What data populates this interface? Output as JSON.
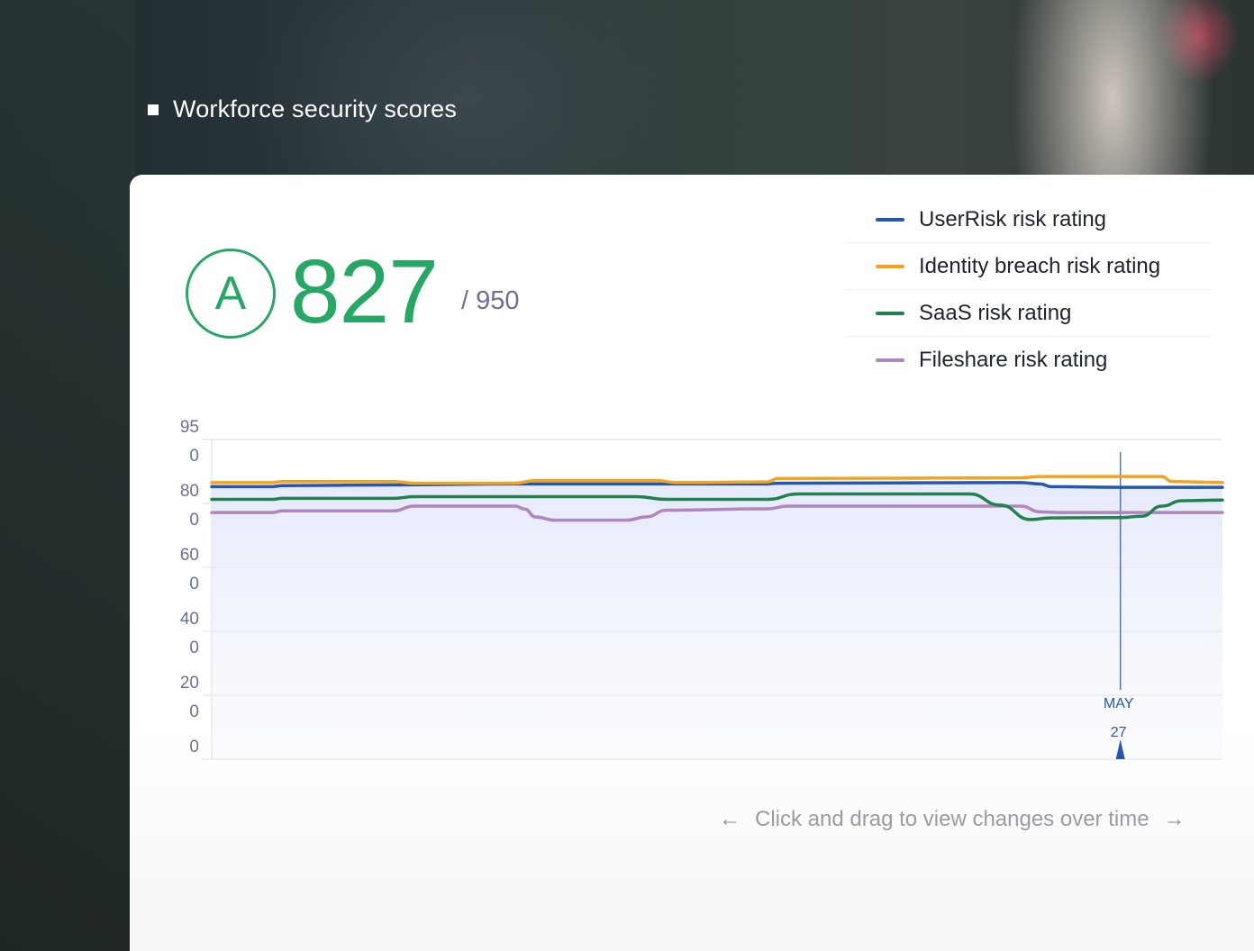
{
  "header": {
    "title": "Workforce security scores"
  },
  "score": {
    "grade": "A",
    "value": "827",
    "max": "/ 950"
  },
  "legend": [
    {
      "label": "UserRisk risk rating",
      "color": "#2356b5"
    },
    {
      "label": "Identity breach risk rating",
      "color": "#f5a31a"
    },
    {
      "label": "SaaS risk rating",
      "color": "#22824d"
    },
    {
      "label": "Fileshare risk rating",
      "color": "#b185c0"
    }
  ],
  "chart_data": {
    "type": "line",
    "y_tick_labels": [
      {
        "main": "95",
        "sub": "0"
      },
      {
        "main": "80",
        "sub": "0"
      },
      {
        "main": "60",
        "sub": "0"
      },
      {
        "main": "40",
        "sub": "0"
      },
      {
        "main": "20",
        "sub": "0"
      },
      {
        "main": "0",
        "sub": ""
      }
    ],
    "ylim": [
      0,
      950
    ],
    "marker": {
      "month": "MAY",
      "day": "27",
      "x_fraction": 0.899
    },
    "x_range": [
      0,
      1
    ],
    "series": [
      {
        "name": "UserRisk risk rating",
        "color": "#2356b5",
        "points": [
          [
            0,
            810
          ],
          [
            0.06,
            810
          ],
          [
            0.07,
            813
          ],
          [
            0.18,
            815
          ],
          [
            0.3,
            818
          ],
          [
            0.55,
            818
          ],
          [
            0.55,
            818
          ],
          [
            0.56,
            820
          ],
          [
            0.78,
            822
          ],
          [
            0.8,
            822
          ],
          [
            0.82,
            818
          ],
          [
            0.83,
            810
          ],
          [
            0.9,
            808
          ],
          [
            1,
            808
          ]
        ]
      },
      {
        "name": "Identity breach risk rating",
        "color": "#f5a31a",
        "points": [
          [
            0,
            822
          ],
          [
            0.06,
            822
          ],
          [
            0.07,
            825
          ],
          [
            0.18,
            825
          ],
          [
            0.2,
            820
          ],
          [
            0.3,
            820
          ],
          [
            0.32,
            828
          ],
          [
            0.44,
            828
          ],
          [
            0.46,
            822
          ],
          [
            0.55,
            824
          ],
          [
            0.56,
            834
          ],
          [
            0.8,
            836
          ],
          [
            0.82,
            840
          ],
          [
            0.94,
            840
          ],
          [
            0.95,
            825
          ],
          [
            1,
            822
          ]
        ]
      },
      {
        "name": "SaaS risk rating",
        "color": "#22824d",
        "points": [
          [
            0,
            772
          ],
          [
            0.06,
            772
          ],
          [
            0.07,
            775
          ],
          [
            0.18,
            775
          ],
          [
            0.2,
            780
          ],
          [
            0.42,
            780
          ],
          [
            0.45,
            772
          ],
          [
            0.55,
            772
          ],
          [
            0.58,
            788
          ],
          [
            0.75,
            788
          ],
          [
            0.78,
            755
          ],
          [
            0.81,
            712
          ],
          [
            0.83,
            717
          ],
          [
            0.9,
            718
          ],
          [
            0.92,
            722
          ],
          [
            0.94,
            752
          ],
          [
            0.96,
            768
          ],
          [
            1,
            770
          ]
        ]
      },
      {
        "name": "Fileshare risk rating",
        "color": "#b185c0",
        "points": [
          [
            0,
            733
          ],
          [
            0.06,
            733
          ],
          [
            0.07,
            738
          ],
          [
            0.18,
            738
          ],
          [
            0.2,
            752
          ],
          [
            0.3,
            752
          ],
          [
            0.31,
            743
          ],
          [
            0.32,
            720
          ],
          [
            0.34,
            710
          ],
          [
            0.41,
            710
          ],
          [
            0.43,
            720
          ],
          [
            0.45,
            740
          ],
          [
            0.55,
            744
          ],
          [
            0.57,
            752
          ],
          [
            0.8,
            752
          ],
          [
            0.82,
            735
          ],
          [
            0.84,
            733
          ],
          [
            1,
            733
          ]
        ]
      }
    ]
  },
  "hint": {
    "left_arrow": "←",
    "text": "Click and drag to view changes over time",
    "right_arrow": "→"
  }
}
